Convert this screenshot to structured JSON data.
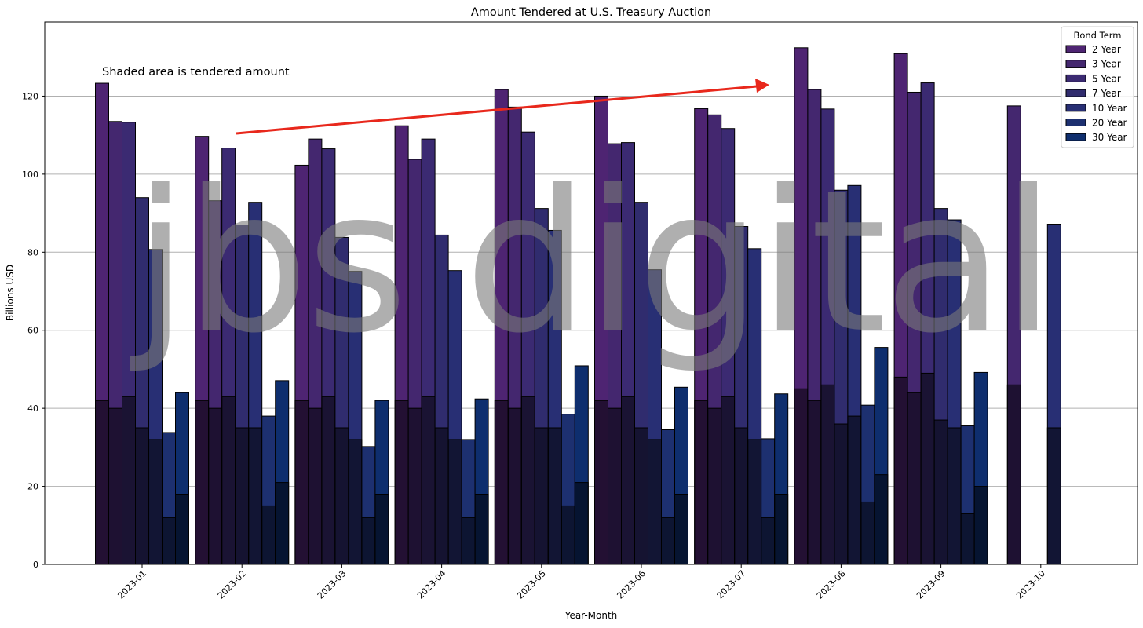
{
  "chart_data": {
    "type": "bar",
    "title": "Amount Tendered at U.S. Treasury Auction",
    "xlabel": "Year-Month",
    "ylabel": "Billions USD",
    "ylim": [
      0,
      139
    ],
    "yticks": [
      0,
      20,
      40,
      60,
      80,
      100,
      120
    ],
    "grid": "horizontal",
    "legend_title": "Bond Term",
    "legend_position": "top-right",
    "annotation": "Shaded area is tendered amount",
    "watermark": "jbs digital",
    "arrow_color": "#e8281c",
    "categories": [
      "2023-01",
      "2023-02",
      "2023-03",
      "2023-04",
      "2023-05",
      "2023-06",
      "2023-07",
      "2023-08",
      "2023-09",
      "2023-10"
    ],
    "series": [
      {
        "name": "2 Year",
        "color": "#4e2472",
        "values": [
          123.3,
          109.7,
          102.3,
          112.4,
          121.7,
          120.0,
          116.8,
          132.4,
          130.9,
          0
        ],
        "shaded": [
          42,
          42,
          42,
          42,
          42,
          42,
          42,
          45,
          48,
          0
        ]
      },
      {
        "name": "3 Year",
        "color": "#44276f",
        "values": [
          113.5,
          93.2,
          109.0,
          103.8,
          117.2,
          107.8,
          115.2,
          121.7,
          121.0,
          117.5
        ],
        "shaded": [
          40,
          40,
          40,
          40,
          40,
          40,
          40,
          42,
          44,
          46
        ]
      },
      {
        "name": "5 Year",
        "color": "#3b2a72",
        "values": [
          113.3,
          106.7,
          106.5,
          109.0,
          110.8,
          108.1,
          111.7,
          116.7,
          123.4,
          0
        ],
        "shaded": [
          43,
          43,
          43,
          43,
          43,
          43,
          43,
          46,
          49,
          0
        ]
      },
      {
        "name": "7 Year",
        "color": "#302c6e",
        "values": [
          94.0,
          87.0,
          83.8,
          84.4,
          91.2,
          92.8,
          86.6,
          95.9,
          91.2,
          0
        ],
        "shaded": [
          35,
          35,
          35,
          35,
          35,
          35,
          35,
          36,
          37,
          0
        ]
      },
      {
        "name": "10 Year",
        "color": "#282f74",
        "values": [
          80.7,
          92.8,
          75.1,
          75.3,
          85.6,
          75.5,
          80.9,
          97.1,
          88.3,
          87.2
        ],
        "shaded": [
          32,
          35,
          32,
          32,
          35,
          32,
          32,
          38,
          35,
          35
        ]
      },
      {
        "name": "20 Year",
        "color": "#1d3070",
        "values": [
          33.8,
          38.0,
          30.2,
          32.0,
          38.5,
          34.5,
          32.2,
          40.8,
          35.5,
          0
        ],
        "shaded": [
          12,
          15,
          12,
          12,
          15,
          12,
          12,
          16,
          13,
          0
        ]
      },
      {
        "name": "30 Year",
        "color": "#0e2e6e",
        "values": [
          44.0,
          47.1,
          42.0,
          42.4,
          50.9,
          45.4,
          43.7,
          55.6,
          49.2,
          0
        ],
        "shaded": [
          18,
          21,
          18,
          18,
          21,
          18,
          18,
          23,
          20,
          0
        ]
      }
    ]
  }
}
